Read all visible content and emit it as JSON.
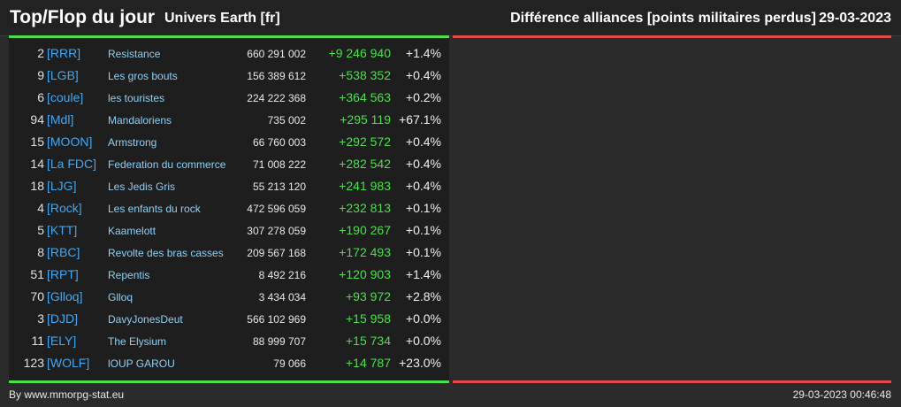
{
  "header": {
    "title": "Top/Flop du jour",
    "subtitle": "Univers Earth [fr]",
    "right_title": "Différence alliances [points militaires perdus]",
    "date": "29-03-2023"
  },
  "rows": [
    {
      "rank": "2",
      "tag": "[RRR]",
      "name": "Resistance",
      "points": "660 291 002",
      "diff": "+9 246 940",
      "pct": "+1.4%"
    },
    {
      "rank": "9",
      "tag": "[LGB]",
      "name": "Les gros bouts",
      "points": "156 389 612",
      "diff": "+538 352",
      "pct": "+0.4%"
    },
    {
      "rank": "6",
      "tag": "[coule]",
      "name": "les touristes",
      "points": "224 222 368",
      "diff": "+364 563",
      "pct": "+0.2%"
    },
    {
      "rank": "94",
      "tag": "[Mdl]",
      "name": "Mandaloriens",
      "points": "735 002",
      "diff": "+295 119",
      "pct": "+67.1%"
    },
    {
      "rank": "15",
      "tag": "[MOON]",
      "name": "Armstrong",
      "points": "66 760 003",
      "diff": "+292 572",
      "pct": "+0.4%"
    },
    {
      "rank": "14",
      "tag": "[La FDC]",
      "name": "Federation du commerce",
      "points": "71 008 222",
      "diff": "+282 542",
      "pct": "+0.4%"
    },
    {
      "rank": "18",
      "tag": "[LJG]",
      "name": "Les Jedis Gris",
      "points": "55 213 120",
      "diff": "+241 983",
      "pct": "+0.4%"
    },
    {
      "rank": "4",
      "tag": "[Rock]",
      "name": "Les enfants du rock",
      "points": "472 596 059",
      "diff": "+232 813",
      "pct": "+0.1%"
    },
    {
      "rank": "5",
      "tag": "[KTT]",
      "name": "Kaamelott",
      "points": "307 278 059",
      "diff": "+190 267",
      "pct": "+0.1%"
    },
    {
      "rank": "8",
      "tag": "[RBC]",
      "name": "Revolte des bras casses",
      "points": "209 567 168",
      "diff": "+172 493",
      "pct": "+0.1%"
    },
    {
      "rank": "51",
      "tag": "[RPT]",
      "name": "Repentis",
      "points": "8 492 216",
      "diff": "+120 903",
      "pct": "+1.4%"
    },
    {
      "rank": "70",
      "tag": "[Glloq]",
      "name": "Glloq",
      "points": "3 434 034",
      "diff": "+93 972",
      "pct": "+2.8%"
    },
    {
      "rank": "3",
      "tag": "[DJD]",
      "name": "DavyJonesDeut",
      "points": "566 102 969",
      "diff": "+15 958",
      "pct": "+0.0%"
    },
    {
      "rank": "11",
      "tag": "[ELY]",
      "name": "The Elysium",
      "points": "88 999 707",
      "diff": "+15 734",
      "pct": "+0.0%"
    },
    {
      "rank": "123",
      "tag": "[WOLF]",
      "name": "lOUP GAROU",
      "points": "79 066",
      "diff": "+14 787",
      "pct": "+23.0%"
    }
  ],
  "footer": {
    "left": "By www.mmorpg-stat.eu",
    "right": "29-03-2023 00:46:48"
  },
  "colors": {
    "top_accent": "#4be04b",
    "flop_accent": "#e04b4b",
    "tag": "#3fa9f5"
  }
}
